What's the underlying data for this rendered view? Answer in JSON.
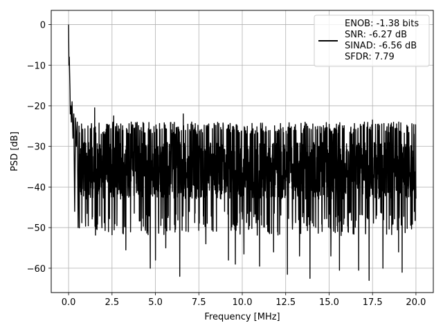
{
  "chart_data": {
    "type": "line",
    "title": "",
    "xlabel": "Frequency [MHz]",
    "ylabel": "PSD [dB]",
    "xlim": [
      -1.0,
      21.0
    ],
    "ylim": [
      -66,
      3.5
    ],
    "xticks": [
      0.0,
      2.5,
      5.0,
      7.5,
      10.0,
      12.5,
      15.0,
      17.5,
      20.0
    ],
    "xtick_labels": [
      "0.0",
      "2.5",
      "5.0",
      "7.5",
      "10.0",
      "12.5",
      "15.0",
      "17.5",
      "20.0"
    ],
    "yticks": [
      0,
      -10,
      -20,
      -30,
      -40,
      -50,
      -60
    ],
    "ytick_labels": [
      "0",
      "−10",
      "−20",
      "−30",
      "−40",
      "−50",
      "−60"
    ],
    "grid": true,
    "legend_position": "top-right",
    "series": [
      {
        "name": "ENOB: -1.38 bits\nSNR: -6.27 dB\nSINAD: -6.56 dB\nSFDR: 7.79",
        "color": "#000000",
        "x": [
          0.0,
          0.02,
          0.04,
          0.06,
          0.08,
          0.1,
          0.13,
          0.16,
          0.2,
          0.25,
          0.3,
          0.35,
          0.4,
          0.45,
          0.5,
          0.55,
          0.6
        ],
        "y": [
          0.0,
          -10.0,
          -8.0,
          -12.0,
          -16.0,
          -22.0,
          -20.0,
          -24.0,
          -19.0,
          -28.0,
          -22.0,
          -26.0,
          -23.0,
          -30.0,
          -24.0,
          -26.0,
          -25.0
        ],
        "noise_floor": {
          "x_range": [
            0.6,
            20.0
          ],
          "typical_max": -24.0,
          "typical_min": -46.0,
          "peaks": [
            {
              "x": 1.5,
              "y": -20.5
            },
            {
              "x": 2.6,
              "y": -22.5
            },
            {
              "x": 6.6,
              "y": -22.0
            },
            {
              "x": 9.6,
              "y": -22.5
            },
            {
              "x": 19.0,
              "y": -22.5
            },
            {
              "x": 17.5,
              "y": -23.5
            }
          ],
          "dips": [
            {
              "x": 0.35,
              "y": -46.0
            },
            {
              "x": 0.55,
              "y": -50.0
            },
            {
              "x": 2.3,
              "y": -51.0
            },
            {
              "x": 3.3,
              "y": -55.5
            },
            {
              "x": 4.7,
              "y": -60.0
            },
            {
              "x": 5.0,
              "y": -58.0
            },
            {
              "x": 5.6,
              "y": -55.0
            },
            {
              "x": 6.4,
              "y": -62.0
            },
            {
              "x": 6.9,
              "y": -51.0
            },
            {
              "x": 7.9,
              "y": -54.0
            },
            {
              "x": 9.2,
              "y": -58.0
            },
            {
              "x": 9.6,
              "y": -59.0
            },
            {
              "x": 10.1,
              "y": -56.5
            },
            {
              "x": 11.0,
              "y": -59.5
            },
            {
              "x": 11.8,
              "y": -56.0
            },
            {
              "x": 12.6,
              "y": -61.5
            },
            {
              "x": 13.3,
              "y": -57.0
            },
            {
              "x": 13.9,
              "y": -62.5
            },
            {
              "x": 15.1,
              "y": -57.0
            },
            {
              "x": 15.6,
              "y": -60.5
            },
            {
              "x": 16.7,
              "y": -60.5
            },
            {
              "x": 17.3,
              "y": -63.0
            },
            {
              "x": 18.1,
              "y": -60.0
            },
            {
              "x": 19.0,
              "y": -56.0
            },
            {
              "x": 19.2,
              "y": -61.0
            }
          ]
        }
      }
    ]
  }
}
